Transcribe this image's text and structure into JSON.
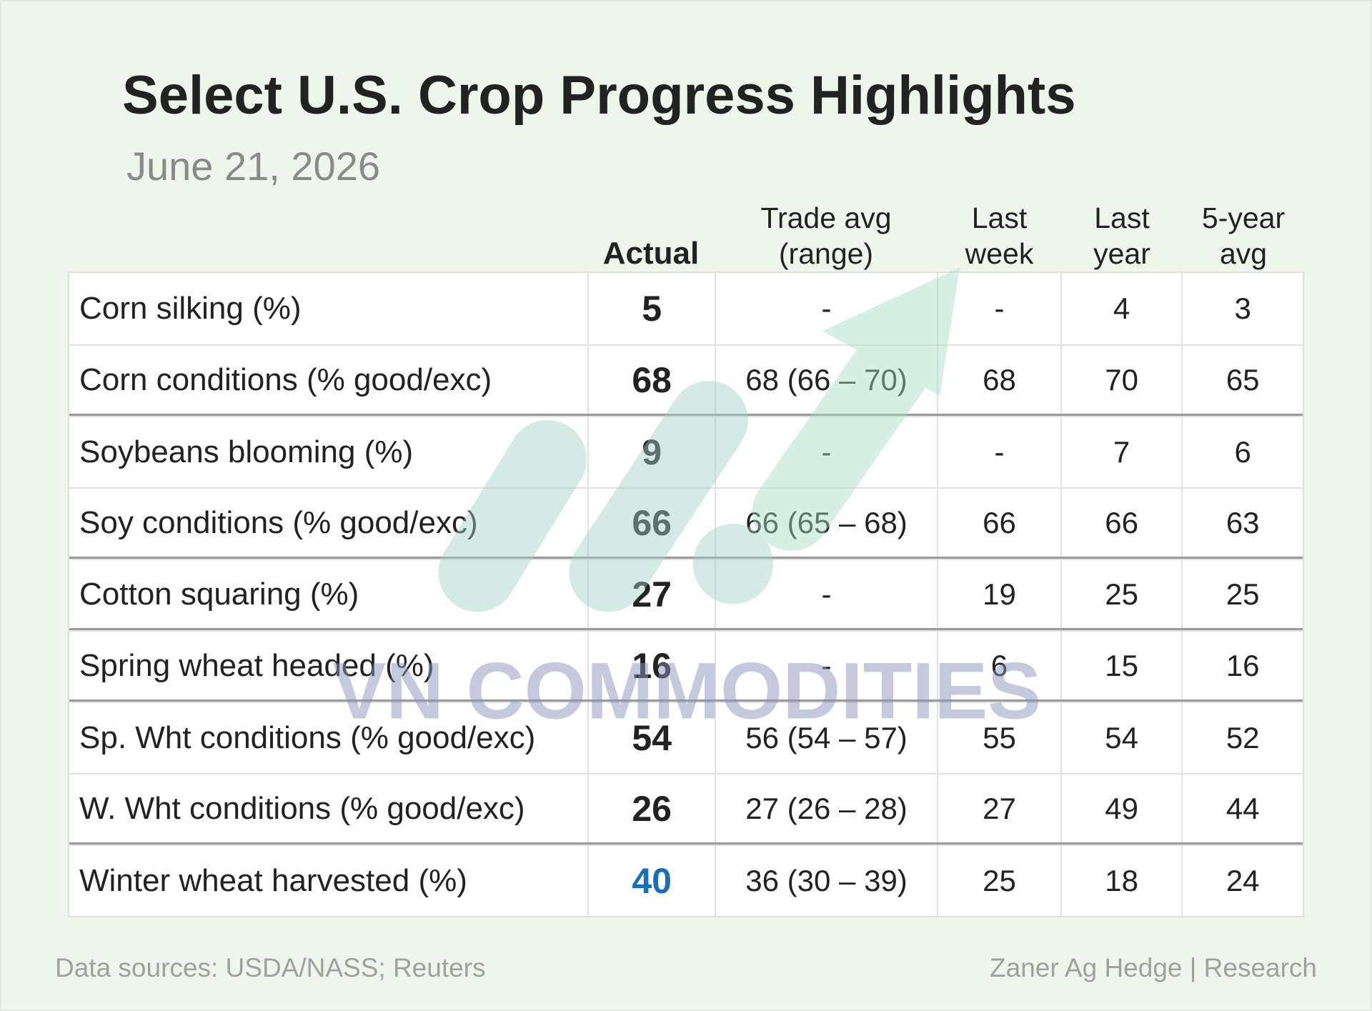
{
  "header": {
    "title": "Select U.S. Crop Progress Highlights",
    "subtitle": "June 21, 2026"
  },
  "table": {
    "columns": [
      "Actual",
      "Trade avg\n(range)",
      "Last\nweek",
      "Last\nyear",
      "5-year\navg"
    ],
    "rows": [
      [
        "Corn silking (%)",
        5,
        "-",
        "-",
        4,
        3
      ],
      [
        "Corn conditions (% good/exc)",
        68,
        "68 (66 – 70)",
        68,
        70,
        65
      ],
      [
        "Soybeans blooming (%)",
        9,
        "-",
        "-",
        7,
        6
      ],
      [
        "Soy conditions (% good/exc)",
        66,
        "66 (65 – 68)",
        66,
        66,
        63
      ],
      [
        "Cotton squaring (%)",
        27,
        "-",
        19,
        25,
        25
      ],
      [
        "Spring wheat headed (%)",
        16,
        "-",
        6,
        15,
        16
      ],
      [
        "Sp. Wht conditions (% good/exc)",
        54,
        "56 (54 – 57)",
        55,
        54,
        52
      ],
      [
        "W. Wht conditions (% good/exc)",
        26,
        "27 (26 – 28)",
        27,
        49,
        44
      ],
      [
        "Winter wheat harvested (%)",
        40,
        "36 (30 – 39)",
        25,
        18,
        24
      ]
    ],
    "section_breaks_after": [
      1,
      3,
      4,
      5,
      7
    ],
    "highlight_row": 8,
    "highlight_color": "#1a6fb5"
  },
  "watermark": "VN COMMODITIES",
  "footer": {
    "source": "Data sources: USDA/NASS; Reuters",
    "credit": "Zaner Ag Hedge | Research"
  }
}
